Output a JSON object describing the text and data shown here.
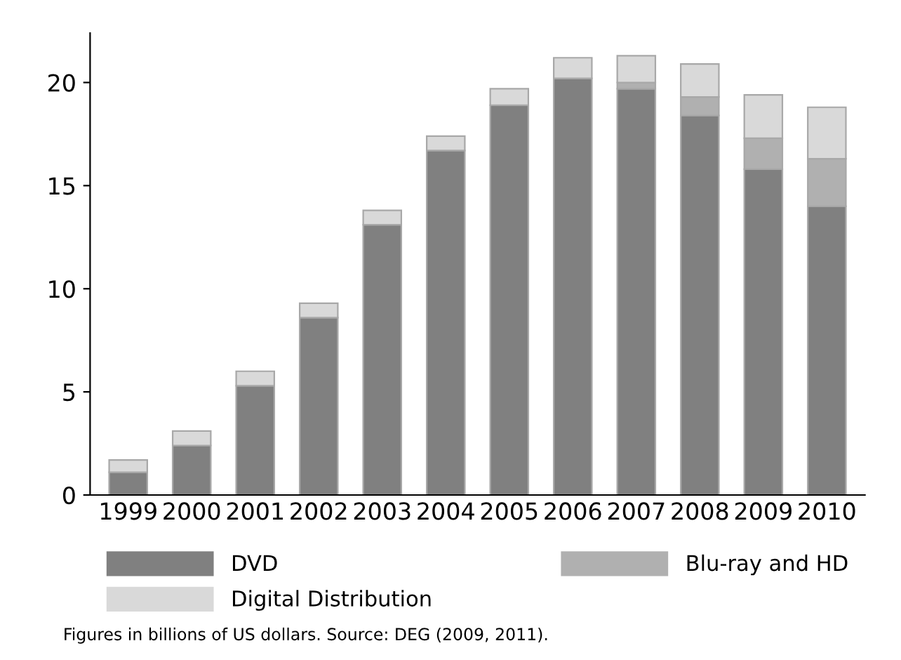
{
  "chart_data": {
    "type": "bar",
    "stacked": true,
    "categories": [
      "1999",
      "2000",
      "2001",
      "2002",
      "2003",
      "2004",
      "2005",
      "2006",
      "2007",
      "2008",
      "2009",
      "2010"
    ],
    "series": [
      {
        "name": "DVD",
        "color": "#808080",
        "values": [
          1.1,
          2.4,
          5.3,
          8.6,
          13.1,
          16.7,
          18.9,
          20.2,
          19.7,
          18.4,
          15.8,
          14.0
        ]
      },
      {
        "name": "Blu-ray and HD",
        "color": "#b0b0b0",
        "values": [
          null,
          null,
          null,
          null,
          null,
          null,
          null,
          null,
          0.3,
          0.9,
          1.5,
          2.3
        ]
      },
      {
        "name": "Digital Distribution",
        "color": "#d9d9d9",
        "values": [
          0.6,
          0.7,
          0.7,
          0.7,
          0.7,
          0.7,
          0.8,
          1.0,
          1.3,
          1.6,
          2.1,
          2.5
        ]
      }
    ],
    "ylim": [
      0,
      22.4
    ],
    "yticks": [
      0,
      5,
      10,
      15,
      20
    ],
    "grid": false,
    "legend": "bottom",
    "annotations": [
      "Figures in billions of US dollars. Source: DEG (2009, 2011)."
    ]
  }
}
